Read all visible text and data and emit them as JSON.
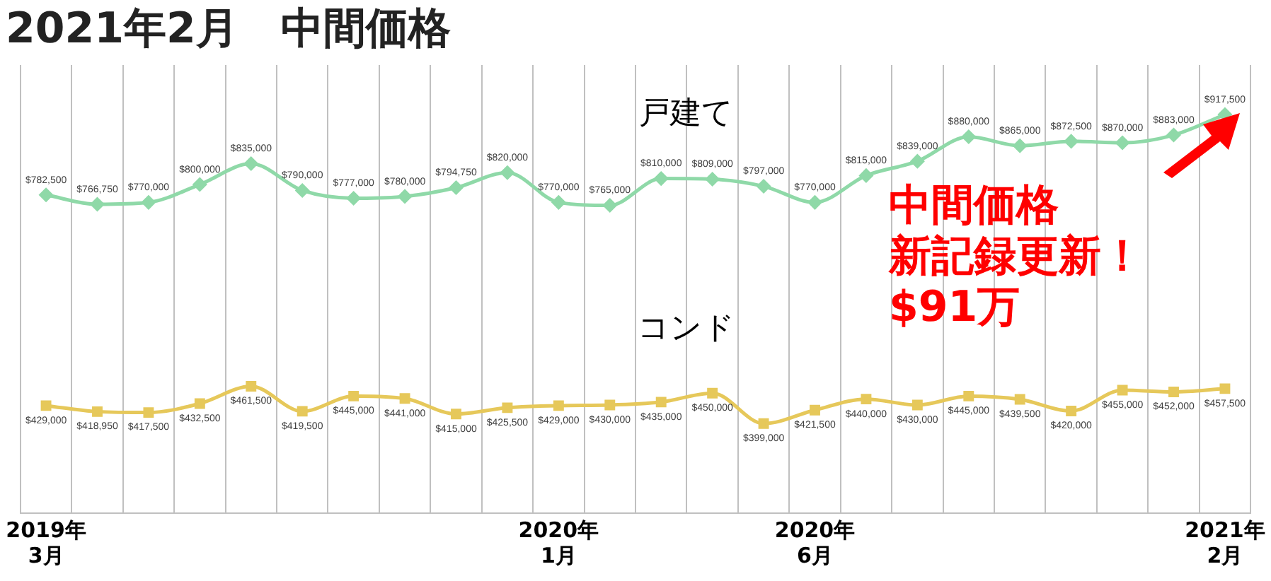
{
  "chart_data": {
    "type": "line",
    "title": "2021年2月　中間価格",
    "categories": [
      "2019年\n3月",
      null,
      null,
      null,
      null,
      null,
      null,
      null,
      null,
      null,
      "2020年\n1月",
      null,
      null,
      null,
      null,
      "2020年\n6月",
      null,
      null,
      null,
      null,
      null,
      null,
      null,
      "2021年\n2月"
    ],
    "series": [
      {
        "name": "戸建て",
        "color": "#8fd9a8",
        "marker": "diamond",
        "values": [
          782500,
          766750,
          770000,
          800000,
          835000,
          790000,
          777000,
          780000,
          794750,
          820000,
          770000,
          765000,
          810000,
          809000,
          797000,
          770000,
          815000,
          839000,
          880000,
          865000,
          872500,
          870000,
          883000,
          917500
        ],
        "value_labels": [
          "$782,500",
          "$766,750",
          "$770,000",
          "$800,000",
          "$835,000",
          "$790,000",
          "$777,000",
          "$780,000",
          "$794,750",
          "$820,000",
          "$770,000",
          "$765,000",
          "$810,000",
          "$809,000",
          "$797,000",
          "$770,000",
          "$815,000",
          "$839,000",
          "$880,000",
          "$865,000",
          "$872,500",
          "$870,000",
          "$883,000",
          "$917,500"
        ]
      },
      {
        "name": "コンド",
        "color": "#e6c85a",
        "marker": "square",
        "values": [
          429000,
          418950,
          417500,
          432500,
          461500,
          419500,
          445000,
          441000,
          415000,
          425500,
          429000,
          430000,
          435000,
          450000,
          399000,
          421500,
          440000,
          430000,
          445000,
          439500,
          420000,
          455000,
          452000,
          457500
        ],
        "value_labels": [
          "$429,000",
          "$418,950",
          "$417,500",
          "$432,500",
          "$461,500",
          "$419,500",
          "$445,000",
          "$441,000",
          "$415,000",
          "$425,500",
          "$429,000",
          "$430,000",
          "$435,000",
          "$450,000",
          "$399,000",
          "$421,500",
          "$440,000",
          "$430,000",
          "$445,000",
          "$439,500",
          "$420,000",
          "$455,000",
          "$452,000",
          "$457,500"
        ]
      }
    ],
    "tick_labels": "x",
    "grid": "x",
    "legend": false,
    "annotations": [
      "中間価格",
      "新記録更新！",
      "$91万"
    ]
  }
}
